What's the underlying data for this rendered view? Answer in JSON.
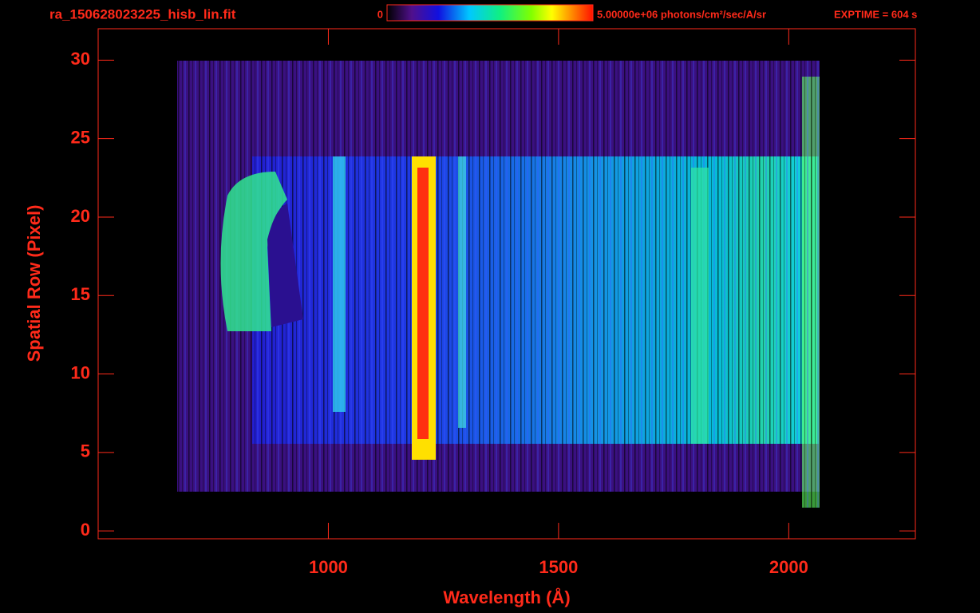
{
  "chart_data": {
    "type": "image",
    "title": "ra_150628023225_hisb_lin.fit",
    "colorbar_labels": [
      "0",
      "5.00000e+06 photons/cm²/sec/A/sr"
    ],
    "annotation": "EXPTIME = 604 s",
    "x_label": "Wavelength (Å)",
    "y_label": "Spatial Row (Pixel)",
    "xlim": [
      500,
      2275
    ],
    "xticks": [
      1000,
      1500,
      2000
    ],
    "ylim": [
      -0.5,
      32
    ],
    "yticks": [
      0,
      5,
      10,
      15,
      20,
      25,
      30
    ],
    "color": "#ff2a1a"
  }
}
